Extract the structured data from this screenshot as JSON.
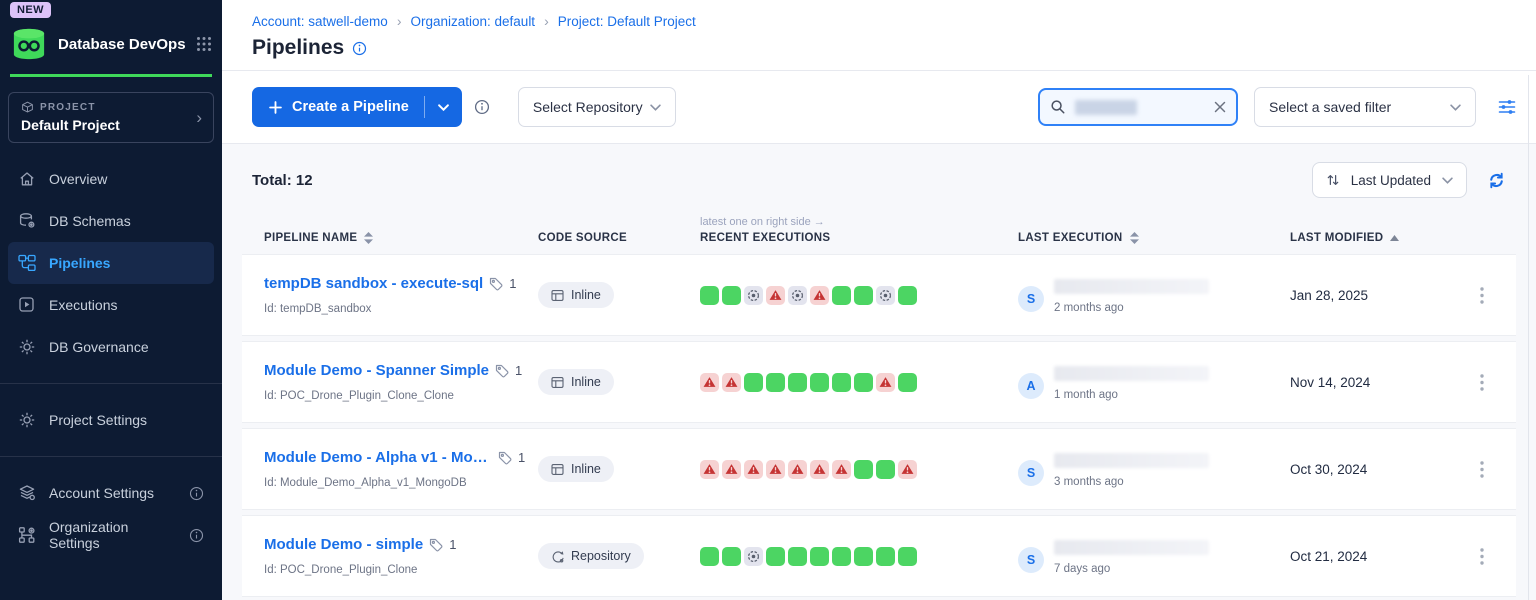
{
  "colors": {
    "accent_blue": "#1a6fe8",
    "primary_button": "#1568e3",
    "sidebar_bg": "#0d1b33",
    "nav_active": "#38a7ff",
    "brand_green": "#3fd95a",
    "badge_purple": "#dcc2f8",
    "success_green": "#4cd563",
    "warning_bg": "#f6d2d2",
    "warning_red": "#c53434",
    "skipped_bg": "#e3e4ee"
  },
  "icons": {
    "app_logo": "database-infinity",
    "apps_grid": "3x3-dots",
    "search": "magnifier",
    "clear": "x-cross",
    "refresh": "sync-arrows",
    "filter": "sliders",
    "sort": "up-down-arrows",
    "row_menu": "kebab-dots",
    "tag": "tag-outline",
    "info": "circle-i"
  },
  "sidebar": {
    "badge": "NEW",
    "app_title": "Database DevOps",
    "project": {
      "label": "PROJECT",
      "name": "Default Project"
    },
    "nav": [
      {
        "label": "Overview",
        "selected": false
      },
      {
        "label": "DB Schemas",
        "selected": false
      },
      {
        "label": "Pipelines",
        "selected": true
      },
      {
        "label": "Executions",
        "selected": false
      },
      {
        "label": "DB Governance",
        "selected": false
      }
    ],
    "secondary": [
      {
        "label": "Project Settings"
      }
    ],
    "tertiary": [
      {
        "label": "Account Settings",
        "info": true
      },
      {
        "label": "Organization Settings",
        "info": true
      }
    ]
  },
  "breadcrumb": {
    "items": [
      {
        "label": "Account: satwell-demo"
      },
      {
        "label": "Organization: default"
      },
      {
        "label": "Project: Default Project"
      }
    ]
  },
  "page": {
    "title": "Pipelines"
  },
  "toolbar": {
    "create_label": "Create a Pipeline",
    "repository_select": "Select Repository",
    "saved_filter_select": "Select a saved filter",
    "search_value": ""
  },
  "list_header": {
    "total": "Total: 12",
    "sort": "Last Updated"
  },
  "table": {
    "columns": [
      "PIPELINE NAME",
      "CODE SOURCE",
      "RECENT EXECUTIONS",
      "LAST EXECUTION",
      "LAST MODIFIED"
    ],
    "recent_note": "latest one on right side →",
    "rows": [
      {
        "name": "tempDB sandbox - execute-sql",
        "tag_count": "1",
        "id": "Id: tempDB_sandbox",
        "code_source": "Inline",
        "executions": [
          "success",
          "success",
          "skipped",
          "warning",
          "skipped",
          "warning",
          "success",
          "success",
          "skipped",
          "success"
        ],
        "last_execution": {
          "avatar": "S",
          "time_ago": "2 months ago"
        },
        "last_modified": "Jan 28, 2025"
      },
      {
        "name": "Module Demo - Spanner Simple",
        "tag_count": "1",
        "id": "Id: POC_Drone_Plugin_Clone_Clone",
        "code_source": "Inline",
        "executions": [
          "warning",
          "warning",
          "success",
          "success",
          "success",
          "success",
          "success",
          "success",
          "warning",
          "success"
        ],
        "last_execution": {
          "avatar": "A",
          "time_ago": "1 month ago"
        },
        "last_modified": "Nov 14, 2024"
      },
      {
        "name": "Module Demo - Alpha v1 - Mongo...",
        "tag_count": "1",
        "id": "Id: Module_Demo_Alpha_v1_MongoDB",
        "code_source": "Inline",
        "executions": [
          "warning",
          "warning",
          "warning",
          "warning",
          "warning",
          "warning",
          "warning",
          "success",
          "success",
          "warning"
        ],
        "last_execution": {
          "avatar": "S",
          "time_ago": "3 months ago"
        },
        "last_modified": "Oct 30, 2024"
      },
      {
        "name": "Module Demo - simple",
        "tag_count": "1",
        "id": "Id: POC_Drone_Plugin_Clone",
        "code_source": "Repository",
        "executions": [
          "success",
          "success",
          "skipped",
          "success",
          "success",
          "success",
          "success",
          "success",
          "success",
          "success"
        ],
        "last_execution": {
          "avatar": "S",
          "time_ago": "7 days ago"
        },
        "last_modified": "Oct 21, 2024"
      }
    ]
  }
}
